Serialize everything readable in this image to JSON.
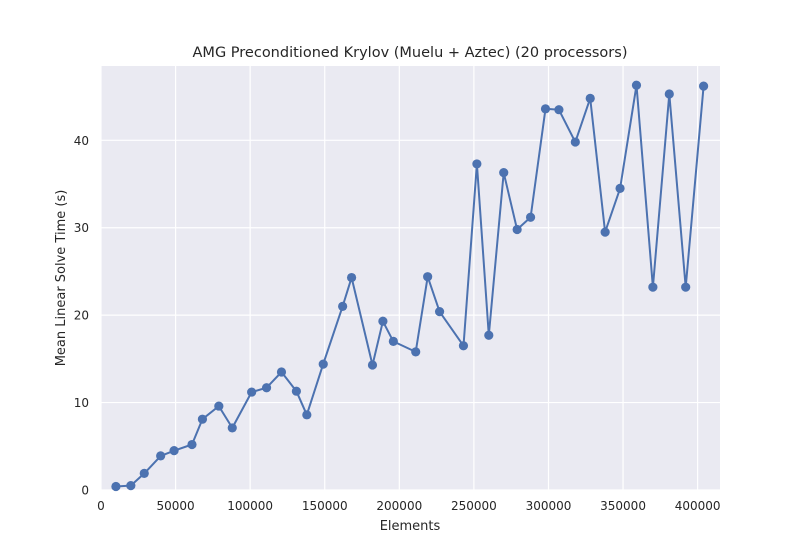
{
  "chart_data": {
    "type": "line",
    "title": "AMG Preconditioned Krylov (Muelu + Aztec) (20 processors)",
    "xlabel": "Elements",
    "ylabel": "Mean Linear Solve Time (s)",
    "xlim": [
      0,
      415000
    ],
    "ylim": [
      0,
      48.5
    ],
    "xticks": [
      0,
      50000,
      100000,
      150000,
      200000,
      250000,
      300000,
      350000,
      400000
    ],
    "yticks": [
      0,
      10,
      20,
      30,
      40
    ],
    "grid": true,
    "series": [
      {
        "color": "#4c72b0",
        "marker": "circle",
        "x": [
          10000,
          20000,
          29000,
          40000,
          49000,
          61000,
          68000,
          79000,
          88000,
          101000,
          111000,
          121000,
          131000,
          138000,
          149000,
          162000,
          168000,
          182000,
          189000,
          196000,
          211000,
          219000,
          227000,
          243000,
          252000,
          260000,
          270000,
          279000,
          288000,
          298000,
          307000,
          318000,
          328000,
          338000,
          348000,
          359000,
          370000,
          381000,
          392000,
          404000
        ],
        "y": [
          0.4,
          0.5,
          1.9,
          3.9,
          4.5,
          5.2,
          8.1,
          9.6,
          7.1,
          11.2,
          11.7,
          13.5,
          11.3,
          8.6,
          14.4,
          21.0,
          24.3,
          14.3,
          19.3,
          17.0,
          15.8,
          24.4,
          20.4,
          16.5,
          37.3,
          17.7,
          36.3,
          29.8,
          31.2,
          43.6,
          43.5,
          39.8,
          44.8,
          29.5,
          34.5,
          46.3,
          23.2,
          45.3,
          23.2,
          46.2
        ]
      }
    ]
  }
}
